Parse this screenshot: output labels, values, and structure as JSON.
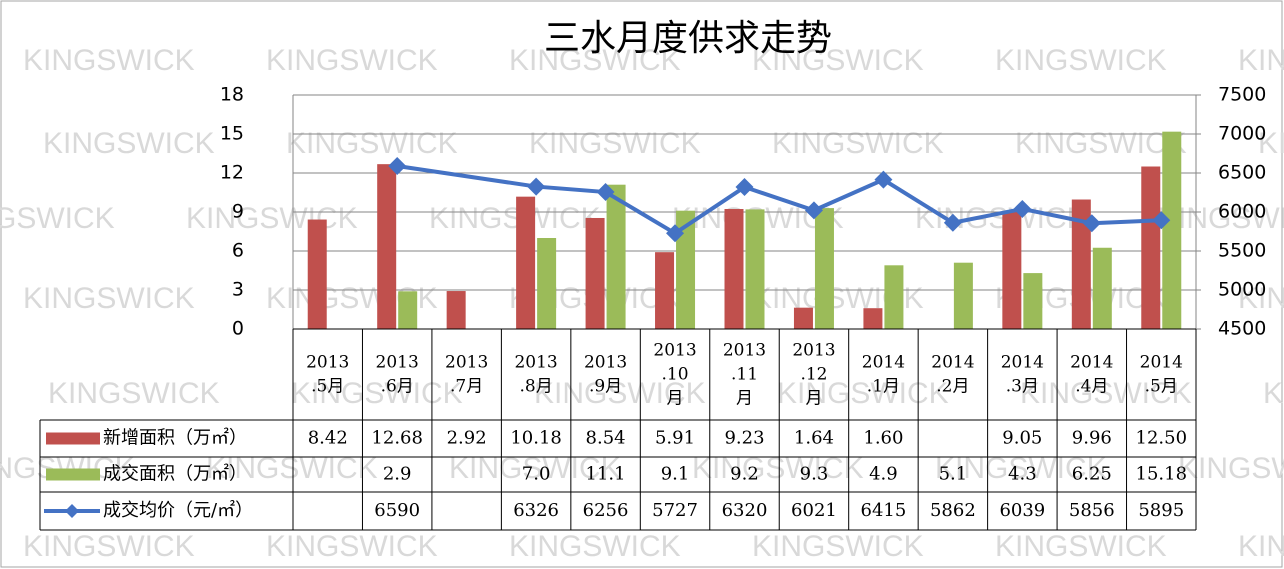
{
  "chart_data": {
    "type": "bar",
    "title": "三水月度供求走势",
    "watermark": "KINGSWICK",
    "categories": [
      "2013.5月",
      "2013.6月",
      "2013.7月",
      "2013.8月",
      "2013.9月",
      "2013.10月",
      "2013.11月",
      "2013.12月",
      "2014.1月",
      "2014.2月",
      "2014.3月",
      "2014.4月",
      "2014.5月"
    ],
    "series": [
      {
        "name": "新增面积（万㎡）",
        "type": "bar",
        "color": "#c0504d",
        "values": [
          8.42,
          12.68,
          2.92,
          10.18,
          8.54,
          5.91,
          9.23,
          1.64,
          1.6,
          null,
          9.05,
          9.96,
          12.5
        ],
        "value_labels": [
          "8.42",
          "12.68",
          "2.92",
          "10.18",
          "8.54",
          "5.91",
          "9.23",
          "1.64",
          "1.60",
          null,
          "9.05",
          "9.96",
          "12.50"
        ]
      },
      {
        "name": "成交面积（万㎡）",
        "type": "bar",
        "color": "#9bbb59",
        "values": [
          null,
          2.9,
          null,
          7.0,
          11.1,
          9.1,
          9.2,
          9.3,
          4.9,
          5.1,
          4.3,
          6.25,
          15.18
        ],
        "value_labels": [
          null,
          "2.9",
          null,
          "7.0",
          "11.1",
          "9.1",
          "9.2",
          "9.3",
          "4.9",
          "5.1",
          "4.3",
          "6.25",
          "15.18"
        ]
      },
      {
        "name": "成交均价（元/㎡）",
        "type": "line",
        "axis": "y2",
        "color": "#4472c4",
        "values": [
          null,
          6590,
          null,
          6326,
          6256,
          5727,
          6320,
          6021,
          6415,
          5862,
          6039,
          5856,
          5895
        ],
        "value_labels": [
          null,
          "6590",
          null,
          "6326",
          "6256",
          "5727",
          "6320",
          "6021",
          "6415",
          "5862",
          "6039",
          "5856",
          "5895"
        ]
      }
    ],
    "ylim": [
      0,
      18
    ],
    "yticks": [
      0,
      3,
      6,
      9,
      12,
      15,
      18
    ],
    "y2lim": [
      4500,
      7500
    ],
    "y2ticks": [
      4500,
      5000,
      5500,
      6000,
      6500,
      7000,
      7500
    ],
    "grid": true
  }
}
